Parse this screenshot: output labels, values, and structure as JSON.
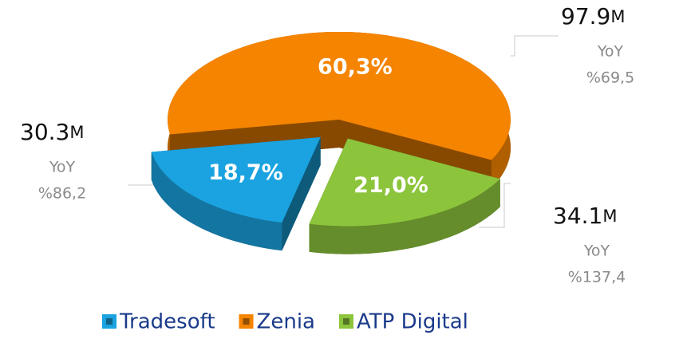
{
  "chart_data": {
    "type": "pie",
    "series": [
      {
        "name": "Tradesoft",
        "color": "#1aa3e0",
        "values": [
          18.7
        ],
        "value_labels": [
          "18,7%"
        ]
      },
      {
        "name": "Zenia",
        "color": "#f58400",
        "values": [
          60.3
        ],
        "value_labels": [
          "60,3%"
        ]
      },
      {
        "name": "ATP Digital",
        "color": "#8cc43c",
        "values": [
          21.0
        ],
        "value_labels": [
          "21,0%"
        ]
      }
    ],
    "annotations": [
      {
        "amount": "30.3",
        "unit": "M",
        "caption": "YoY",
        "change": "%86,2"
      },
      {
        "amount": "97.9",
        "unit": "M",
        "caption": "YoY",
        "change": "%69,5"
      },
      {
        "amount": "34.1",
        "unit": "M",
        "caption": "YoY",
        "change": "%137,4"
      }
    ],
    "legend": "bottom"
  }
}
